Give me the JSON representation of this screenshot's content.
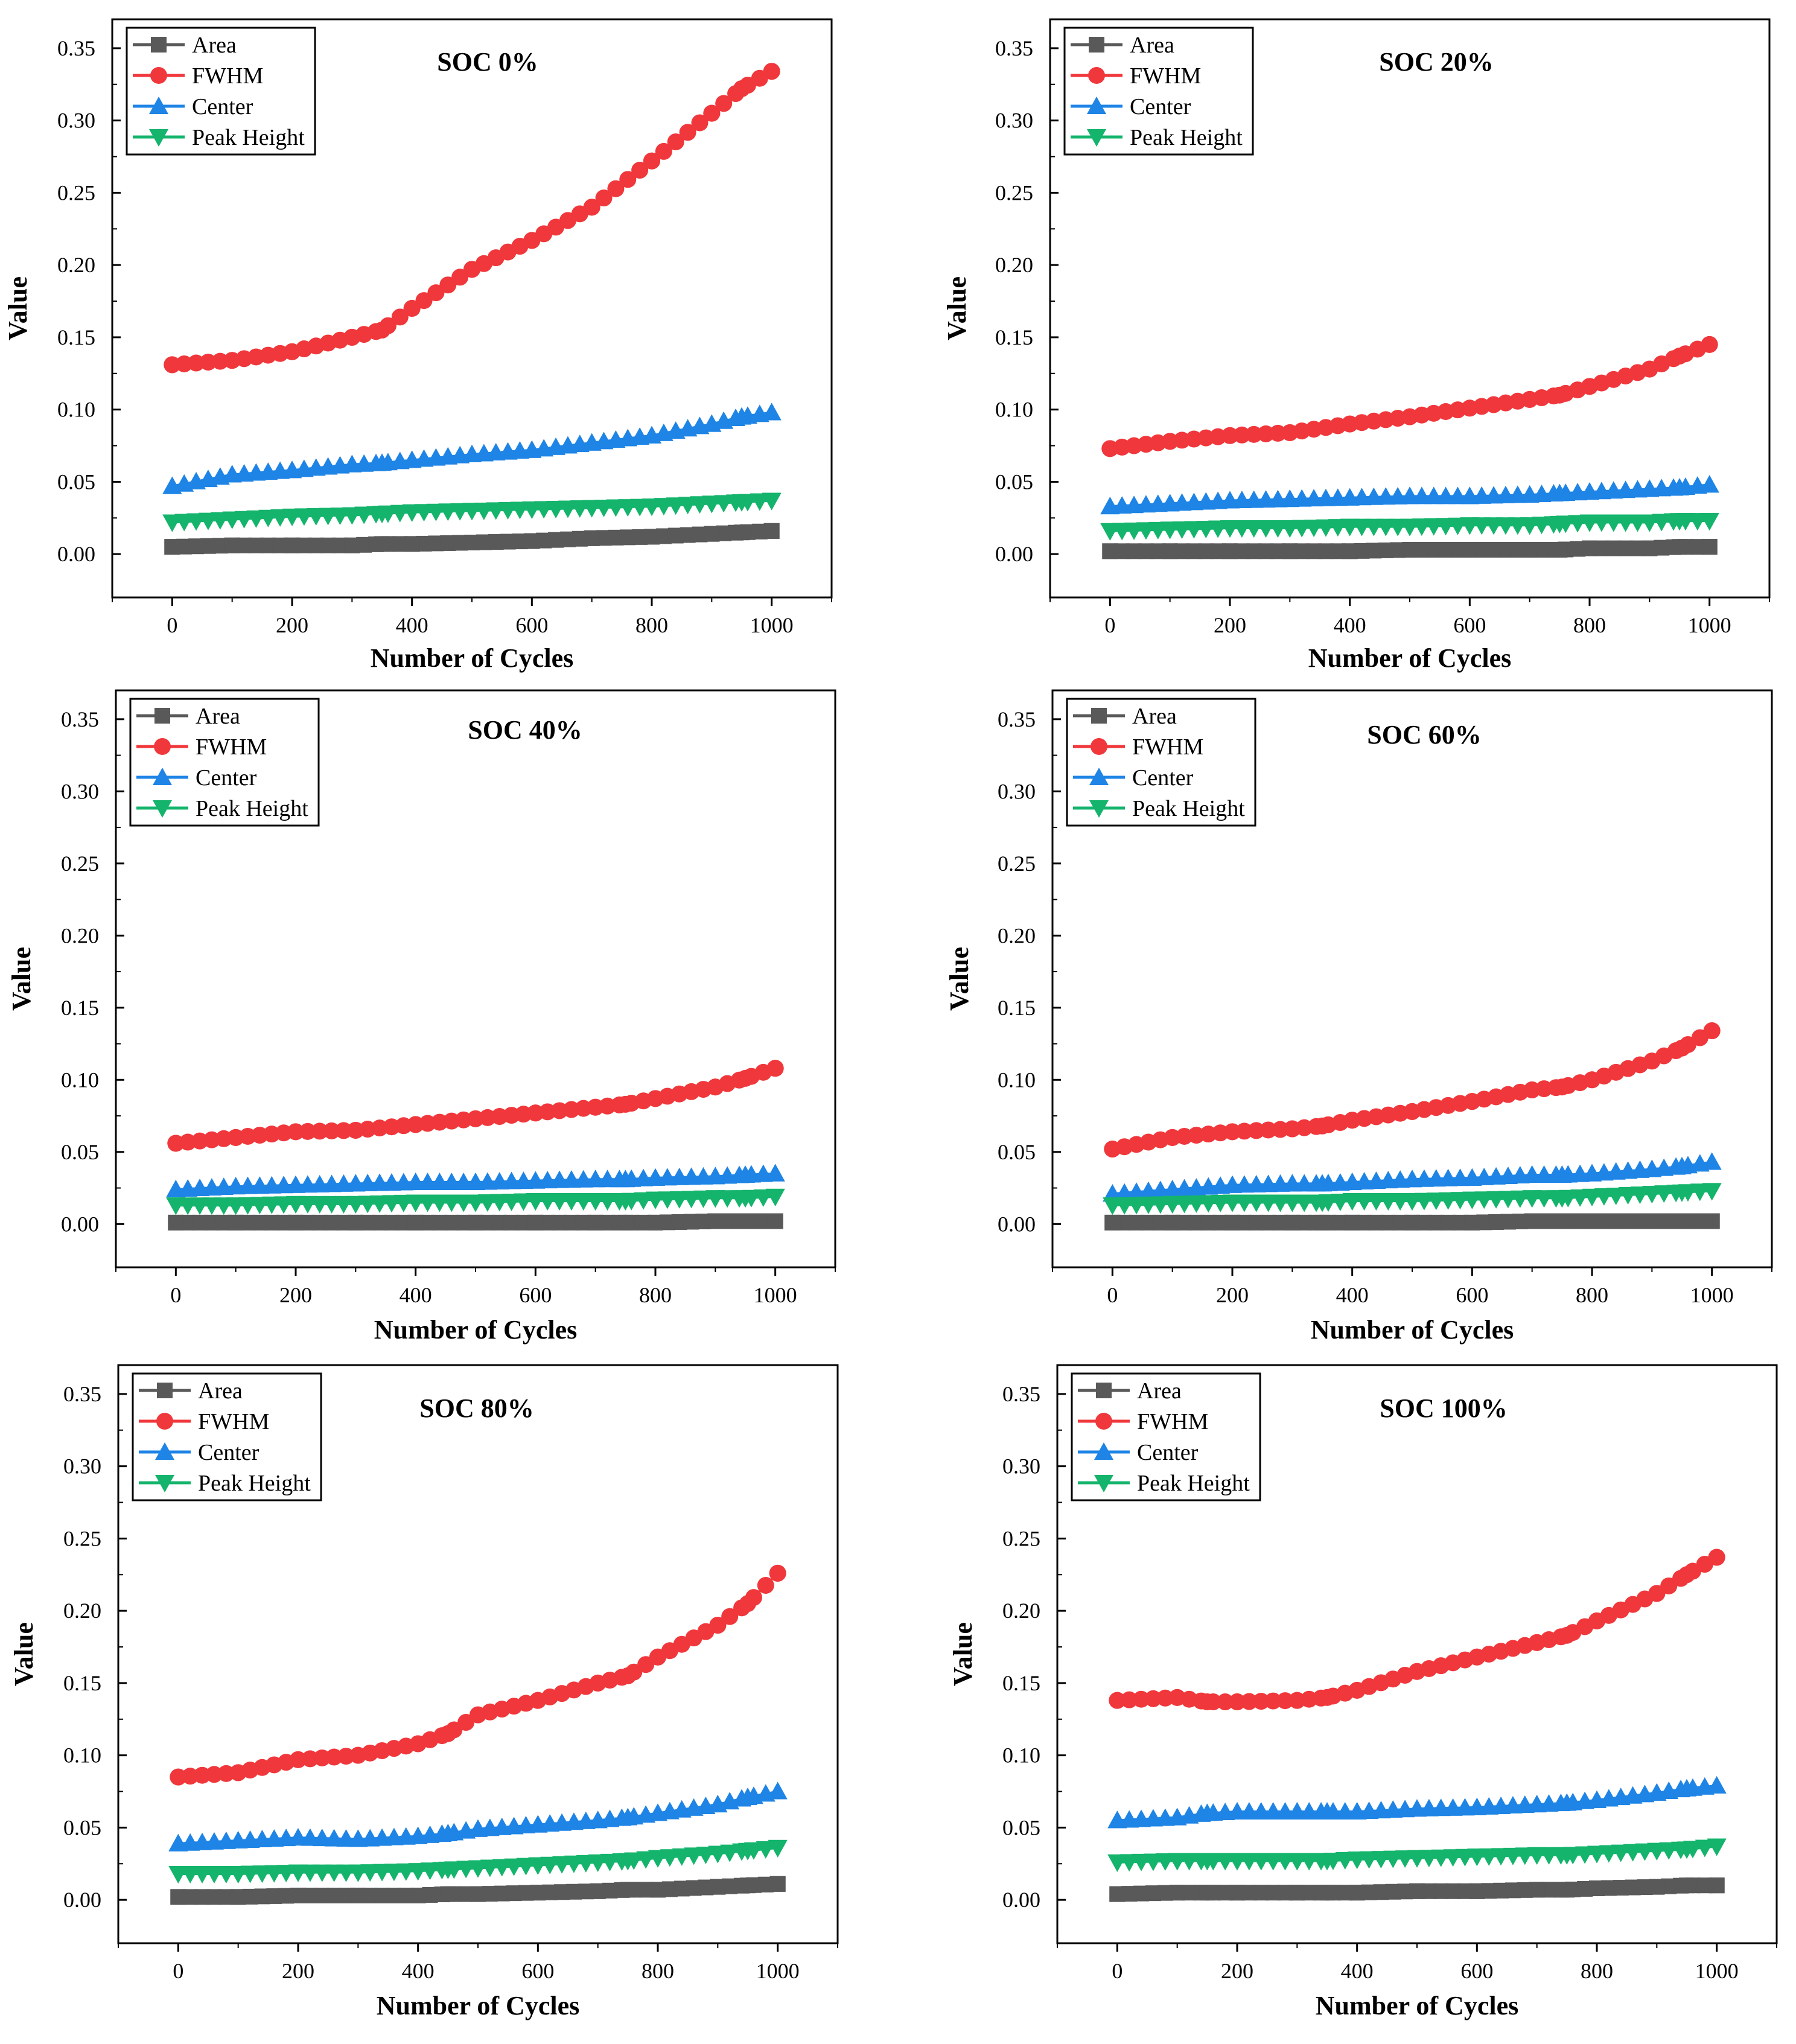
{
  "figure_title": "",
  "chart_data": [
    {
      "type": "line",
      "title": "SOC 0%",
      "xlabel": "Number of Cycles",
      "ylabel": "Value",
      "xlim": [
        -100,
        1100
      ],
      "ylim": [
        -0.03,
        0.37
      ],
      "xticks": [
        "0",
        "200",
        "400",
        "600",
        "800",
        "1000"
      ],
      "yticks": [
        "0.00",
        "0.05",
        "0.10",
        "0.15",
        "0.20",
        "0.25",
        "0.30",
        "0.35"
      ],
      "legend_position": "top-left",
      "x": [
        0,
        100,
        200,
        300,
        350,
        400,
        500,
        600,
        700,
        800,
        900,
        950,
        1000
      ],
      "series": [
        {
          "name": "Area",
          "color": "#595959",
          "marker": "square",
          "values": [
            0.005,
            0.006,
            0.006,
            0.006,
            0.007,
            0.007,
            0.008,
            0.009,
            0.011,
            0.012,
            0.014,
            0.015,
            0.016
          ]
        },
        {
          "name": "FWHM",
          "color": "#f0373b",
          "marker": "circle",
          "values": [
            0.131,
            0.134,
            0.14,
            0.15,
            0.155,
            0.17,
            0.197,
            0.217,
            0.24,
            0.272,
            0.305,
            0.322,
            0.334
          ]
        },
        {
          "name": "Center",
          "color": "#1e84e6",
          "marker": "triangle-up",
          "values": [
            0.047,
            0.055,
            0.058,
            0.062,
            0.063,
            0.065,
            0.069,
            0.072,
            0.077,
            0.082,
            0.09,
            0.095,
            0.098
          ]
        },
        {
          "name": "Peak Height",
          "color": "#14b46c",
          "marker": "triangle-down",
          "values": [
            0.022,
            0.024,
            0.026,
            0.027,
            0.028,
            0.029,
            0.03,
            0.031,
            0.032,
            0.033,
            0.035,
            0.036,
            0.037
          ]
        }
      ]
    },
    {
      "type": "line",
      "title": "SOC 20%",
      "xlabel": "Number of Cycles",
      "ylabel": "Value",
      "xlim": [
        -100,
        1100
      ],
      "ylim": [
        -0.03,
        0.37
      ],
      "xticks": [
        "0",
        "200",
        "400",
        "600",
        "800",
        "1000"
      ],
      "yticks": [
        "0.00",
        "0.05",
        "0.10",
        "0.15",
        "0.20",
        "0.25",
        "0.30",
        "0.35"
      ],
      "legend_position": "top-left",
      "x": [
        0,
        100,
        200,
        300,
        400,
        500,
        600,
        700,
        750,
        800,
        900,
        950,
        1000
      ],
      "series": [
        {
          "name": "Area",
          "color": "#595959",
          "marker": "square",
          "values": [
            0.002,
            0.002,
            0.002,
            0.002,
            0.002,
            0.003,
            0.003,
            0.003,
            0.003,
            0.004,
            0.004,
            0.005,
            0.005
          ]
        },
        {
          "name": "FWHM",
          "color": "#f0373b",
          "marker": "circle",
          "values": [
            0.073,
            0.078,
            0.082,
            0.084,
            0.09,
            0.095,
            0.101,
            0.107,
            0.11,
            0.116,
            0.128,
            0.137,
            0.145
          ]
        },
        {
          "name": "Center",
          "color": "#1e84e6",
          "marker": "triangle-up",
          "values": [
            0.033,
            0.035,
            0.037,
            0.038,
            0.039,
            0.04,
            0.04,
            0.041,
            0.042,
            0.043,
            0.045,
            0.046,
            0.048
          ]
        },
        {
          "name": "Peak Height",
          "color": "#14b46c",
          "marker": "triangle-down",
          "values": [
            0.016,
            0.017,
            0.018,
            0.018,
            0.019,
            0.019,
            0.02,
            0.02,
            0.021,
            0.022,
            0.022,
            0.023,
            0.023
          ]
        }
      ]
    },
    {
      "type": "line",
      "title": "SOC 40%",
      "xlabel": "Number of Cycles",
      "ylabel": "Value",
      "xlim": [
        -100,
        1100
      ],
      "ylim": [
        -0.03,
        0.37
      ],
      "xticks": [
        "0",
        "200",
        "400",
        "600",
        "800",
        "1000"
      ],
      "yticks": [
        "0.00",
        "0.05",
        "0.10",
        "0.15",
        "0.20",
        "0.25",
        "0.30",
        "0.35"
      ],
      "legend_position": "top-left",
      "x": [
        0,
        100,
        200,
        300,
        400,
        500,
        600,
        700,
        750,
        800,
        900,
        950,
        1000
      ],
      "series": [
        {
          "name": "Area",
          "color": "#595959",
          "marker": "square",
          "values": [
            0.001,
            0.001,
            0.001,
            0.001,
            0.001,
            0.001,
            0.001,
            0.001,
            0.001,
            0.001,
            0.002,
            0.002,
            0.002
          ]
        },
        {
          "name": "FWHM",
          "color": "#f0373b",
          "marker": "circle",
          "values": [
            0.056,
            0.06,
            0.064,
            0.065,
            0.069,
            0.073,
            0.077,
            0.081,
            0.083,
            0.087,
            0.095,
            0.101,
            0.108
          ]
        },
        {
          "name": "Center",
          "color": "#1e84e6",
          "marker": "triangle-up",
          "values": [
            0.024,
            0.026,
            0.027,
            0.028,
            0.029,
            0.029,
            0.03,
            0.031,
            0.031,
            0.032,
            0.033,
            0.034,
            0.035
          ]
        },
        {
          "name": "Peak Height",
          "color": "#14b46c",
          "marker": "triangle-down",
          "values": [
            0.013,
            0.013,
            0.014,
            0.014,
            0.015,
            0.015,
            0.016,
            0.016,
            0.016,
            0.017,
            0.018,
            0.018,
            0.019
          ]
        }
      ]
    },
    {
      "type": "line",
      "title": "SOC 60%",
      "xlabel": "Number of Cycles",
      "ylabel": "Value",
      "xlim": [
        -100,
        1100
      ],
      "ylim": [
        -0.03,
        0.37
      ],
      "xticks": [
        "0",
        "200",
        "400",
        "600",
        "800",
        "1000"
      ],
      "yticks": [
        "0.00",
        "0.05",
        "0.10",
        "0.15",
        "0.20",
        "0.25",
        "0.30",
        "0.35"
      ],
      "legend_position": "top-left",
      "x": [
        0,
        100,
        200,
        300,
        350,
        400,
        500,
        600,
        700,
        750,
        800,
        900,
        950,
        1000
      ],
      "series": [
        {
          "name": "Area",
          "color": "#595959",
          "marker": "square",
          "values": [
            0.001,
            0.001,
            0.001,
            0.001,
            0.001,
            0.001,
            0.001,
            0.001,
            0.002,
            0.002,
            0.002,
            0.002,
            0.002,
            0.002
          ]
        },
        {
          "name": "FWHM",
          "color": "#f0373b",
          "marker": "circle",
          "values": [
            0.052,
            0.06,
            0.064,
            0.066,
            0.068,
            0.072,
            0.078,
            0.085,
            0.093,
            0.095,
            0.1,
            0.113,
            0.122,
            0.134
          ]
        },
        {
          "name": "Center",
          "color": "#1e84e6",
          "marker": "triangle-up",
          "values": [
            0.021,
            0.024,
            0.027,
            0.028,
            0.028,
            0.029,
            0.031,
            0.032,
            0.034,
            0.034,
            0.035,
            0.038,
            0.04,
            0.043
          ]
        },
        {
          "name": "Peak Height",
          "color": "#14b46c",
          "marker": "triangle-down",
          "values": [
            0.013,
            0.014,
            0.015,
            0.015,
            0.015,
            0.016,
            0.016,
            0.017,
            0.018,
            0.018,
            0.019,
            0.021,
            0.022,
            0.023
          ]
        }
      ]
    },
    {
      "type": "line",
      "title": "SOC 80%",
      "xlabel": "Number of Cycles",
      "ylabel": "Value",
      "xlim": [
        -100,
        1100
      ],
      "ylim": [
        -0.03,
        0.37
      ],
      "xticks": [
        "0",
        "200",
        "400",
        "600",
        "800",
        "1000"
      ],
      "yticks": [
        "0.00",
        "0.05",
        "0.10",
        "0.15",
        "0.20",
        "0.25",
        "0.30",
        "0.35"
      ],
      "legend_position": "top-left",
      "x": [
        0,
        100,
        200,
        300,
        400,
        450,
        500,
        600,
        700,
        750,
        800,
        900,
        950,
        1000
      ],
      "series": [
        {
          "name": "Area",
          "color": "#595959",
          "marker": "square",
          "values": [
            0.002,
            0.002,
            0.003,
            0.003,
            0.003,
            0.004,
            0.004,
            0.005,
            0.006,
            0.007,
            0.007,
            0.009,
            0.01,
            0.011
          ]
        },
        {
          "name": "FWHM",
          "color": "#f0373b",
          "marker": "circle",
          "values": [
            0.085,
            0.088,
            0.097,
            0.1,
            0.108,
            0.115,
            0.128,
            0.138,
            0.15,
            0.155,
            0.168,
            0.19,
            0.205,
            0.226
          ]
        },
        {
          "name": "Center",
          "color": "#1e84e6",
          "marker": "triangle-up",
          "values": [
            0.039,
            0.041,
            0.043,
            0.042,
            0.044,
            0.046,
            0.049,
            0.052,
            0.055,
            0.057,
            0.06,
            0.066,
            0.071,
            0.075
          ]
        },
        {
          "name": "Peak Height",
          "color": "#14b46c",
          "marker": "triangle-down",
          "values": [
            0.018,
            0.018,
            0.019,
            0.019,
            0.02,
            0.021,
            0.022,
            0.024,
            0.026,
            0.027,
            0.029,
            0.032,
            0.034,
            0.036
          ]
        }
      ]
    },
    {
      "type": "line",
      "title": "SOC 100%",
      "xlabel": "Number of Cycles",
      "ylabel": "Value",
      "xlim": [
        -100,
        1100
      ],
      "ylim": [
        -0.03,
        0.37
      ],
      "xticks": [
        "0",
        "200",
        "400",
        "600",
        "800",
        "1000"
      ],
      "yticks": [
        "0.00",
        "0.05",
        "0.10",
        "0.15",
        "0.20",
        "0.25",
        "0.30",
        "0.35"
      ],
      "legend_position": "top-left",
      "x": [
        0,
        100,
        150,
        200,
        300,
        350,
        400,
        500,
        600,
        700,
        750,
        800,
        900,
        950,
        1000
      ],
      "series": [
        {
          "name": "Area",
          "color": "#595959",
          "marker": "square",
          "values": [
            0.004,
            0.005,
            0.005,
            0.005,
            0.005,
            0.005,
            0.005,
            0.006,
            0.006,
            0.007,
            0.007,
            0.008,
            0.009,
            0.01,
            0.01
          ]
        },
        {
          "name": "FWHM",
          "color": "#f0373b",
          "marker": "circle",
          "values": [
            0.138,
            0.14,
            0.137,
            0.137,
            0.138,
            0.14,
            0.145,
            0.158,
            0.168,
            0.178,
            0.183,
            0.193,
            0.212,
            0.225,
            0.237
          ]
        },
        {
          "name": "Center",
          "color": "#1e84e6",
          "marker": "triangle-up",
          "values": [
            0.055,
            0.057,
            0.06,
            0.061,
            0.061,
            0.061,
            0.061,
            0.063,
            0.064,
            0.066,
            0.067,
            0.069,
            0.074,
            0.077,
            0.079
          ]
        },
        {
          "name": "Peak Height",
          "color": "#14b46c",
          "marker": "triangle-down",
          "values": [
            0.026,
            0.027,
            0.027,
            0.027,
            0.027,
            0.027,
            0.028,
            0.029,
            0.03,
            0.031,
            0.031,
            0.032,
            0.034,
            0.035,
            0.037
          ]
        }
      ]
    }
  ]
}
